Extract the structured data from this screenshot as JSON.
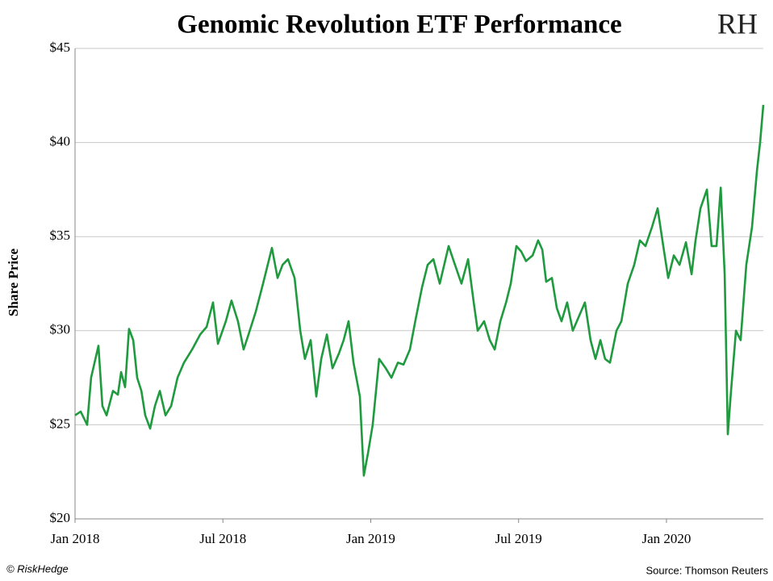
{
  "chart_data": {
    "type": "line",
    "title": "Genomic Revolution ETF Performance",
    "logo": "RH",
    "y_label": "Share Price",
    "credit": "© RiskHedge",
    "source": "Source: Thomson Reuters",
    "xlim": [
      0,
      27.93
    ],
    "xticks": [
      {
        "value": 0,
        "label": "Jan 2018"
      },
      {
        "value": 6,
        "label": "Jul 2018"
      },
      {
        "value": 12,
        "label": "Jan 2019"
      },
      {
        "value": 18,
        "label": "Jul 2019"
      },
      {
        "value": 24,
        "label": "Jan 2020"
      }
    ],
    "ylim": [
      20,
      45
    ],
    "yticks": [
      {
        "value": 20,
        "label": "$20"
      },
      {
        "value": 25,
        "label": "$25"
      },
      {
        "value": 30,
        "label": "$30"
      },
      {
        "value": 35,
        "label": "$35"
      },
      {
        "value": 40,
        "label": "$40"
      },
      {
        "value": 45,
        "label": "$45"
      }
    ],
    "grid": true,
    "x": [
      0,
      0.23,
      0.49,
      0.65,
      0.95,
      1.11,
      1.28,
      1.54,
      1.74,
      1.87,
      2.03,
      2.19,
      2.36,
      2.52,
      2.69,
      2.85,
      3.05,
      3.24,
      3.44,
      3.67,
      3.9,
      4.16,
      4.42,
      4.75,
      5.08,
      5.34,
      5.6,
      5.8,
      6.12,
      6.35,
      6.61,
      6.84,
      7.04,
      7.33,
      7.63,
      7.99,
      8.22,
      8.42,
      8.64,
      8.91,
      9.14,
      9.33,
      9.56,
      9.79,
      9.99,
      10.22,
      10.45,
      10.71,
      10.9,
      11.1,
      11.3,
      11.56,
      11.72,
      11.89,
      12.08,
      12.34,
      12.61,
      12.84,
      13.1,
      13.33,
      13.59,
      13.82,
      14.08,
      14.31,
      14.54,
      14.8,
      15.16,
      15.42,
      15.68,
      15.95,
      16.18,
      16.34,
      16.6,
      16.83,
      17.03,
      17.26,
      17.49,
      17.68,
      17.91,
      18.11,
      18.3,
      18.57,
      18.79,
      18.96,
      19.12,
      19.35,
      19.55,
      19.74,
      19.97,
      20.2,
      20.46,
      20.69,
      20.92,
      21.12,
      21.32,
      21.51,
      21.71,
      21.97,
      22.17,
      22.43,
      22.69,
      22.92,
      23.15,
      23.41,
      23.64,
      23.87,
      24.07,
      24.3,
      24.53,
      24.79,
      25.02,
      25.18,
      25.38,
      25.64,
      25.83,
      26.03,
      26.2,
      26.36,
      26.49,
      26.62,
      26.82,
      27.01,
      27.24,
      27.47,
      27.67,
      27.8,
      27.93
    ],
    "series": [
      {
        "color": "#1f9a3e",
        "values": [
          25.5,
          25.7,
          25,
          27.5,
          29.2,
          26,
          25.5,
          26.8,
          26.6,
          27.8,
          27,
          30.1,
          29.5,
          27.5,
          26.8,
          25.5,
          24.8,
          26,
          26.8,
          25.5,
          26,
          27.5,
          28.3,
          29,
          29.8,
          30.2,
          31.5,
          29.3,
          30.5,
          31.6,
          30.5,
          29,
          29.8,
          31,
          32.5,
          34.4,
          32.8,
          33.5,
          33.8,
          32.8,
          30,
          28.5,
          29.5,
          26.5,
          28.5,
          29.8,
          28,
          28.8,
          29.5,
          30.5,
          28.3,
          26.5,
          22.3,
          23.5,
          25,
          28.5,
          28,
          27.5,
          28.3,
          28.2,
          29,
          30.6,
          32.3,
          33.5,
          33.8,
          32.5,
          34.5,
          33.5,
          32.5,
          33.8,
          31.5,
          30,
          30.5,
          29.5,
          29,
          30.5,
          31.5,
          32.5,
          34.5,
          34.2,
          33.7,
          34,
          34.8,
          34.3,
          32.6,
          32.8,
          31.2,
          30.5,
          31.5,
          30,
          30.8,
          31.5,
          29.5,
          28.5,
          29.5,
          28.5,
          28.3,
          30,
          30.5,
          32.5,
          33.5,
          34.8,
          34.5,
          35.5,
          36.5,
          34.5,
          32.8,
          34,
          33.5,
          34.7,
          33,
          34.8,
          36.5,
          37.5,
          34.5,
          34.5,
          37.6,
          33,
          24.5,
          26.8,
          30,
          29.5,
          33.5,
          35.5,
          38.5,
          40,
          42
        ]
      }
    ]
  }
}
